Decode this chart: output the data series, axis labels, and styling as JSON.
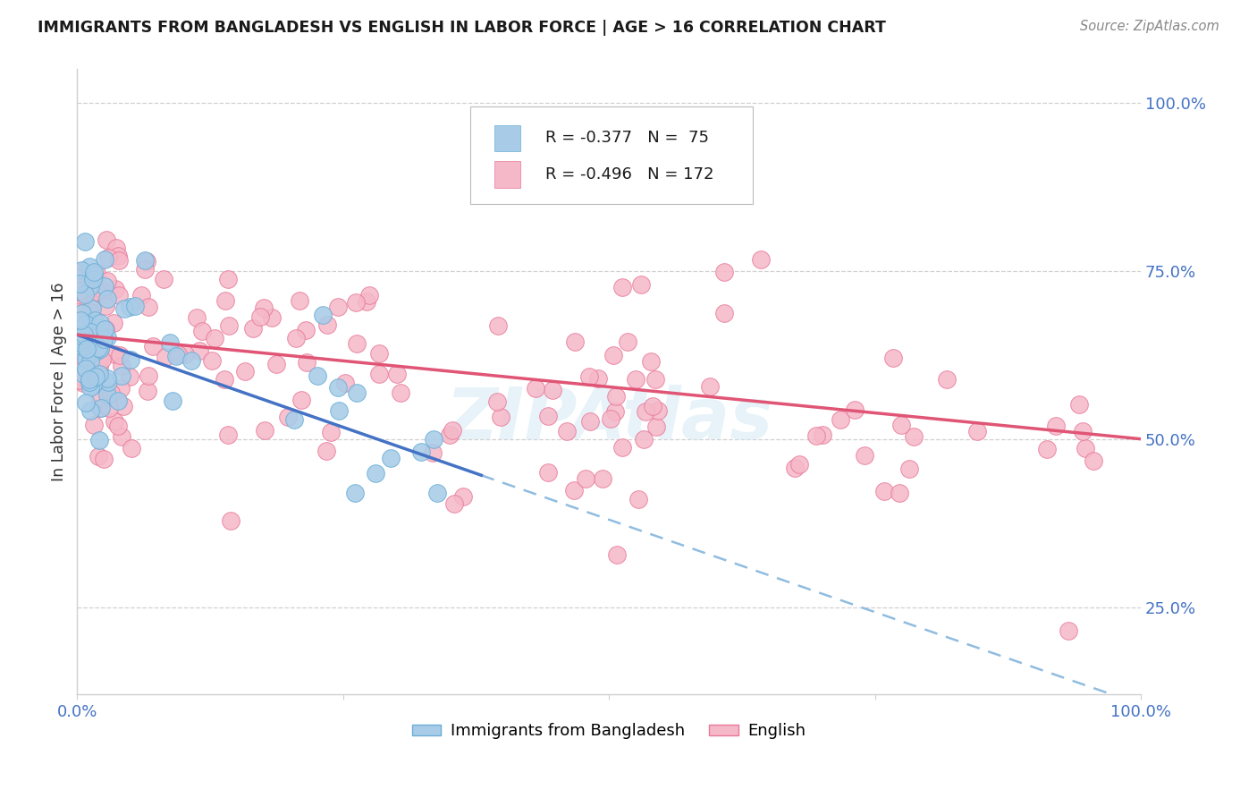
{
  "title": "IMMIGRANTS FROM BANGLADESH VS ENGLISH IN LABOR FORCE | AGE > 16 CORRELATION CHART",
  "source": "Source: ZipAtlas.com",
  "ylabel": "In Labor Force | Age > 16",
  "legend_blue_r": "-0.377",
  "legend_blue_n": "75",
  "legend_pink_r": "-0.496",
  "legend_pink_n": "172",
  "blue_color": "#a8cce8",
  "pink_color": "#f5b8c8",
  "blue_edge": "#6aadd5",
  "pink_edge": "#e87898",
  "trendline_blue_solid": "#4472c4",
  "trendline_blue_dashed": "#90bce0",
  "trendline_pink": "#e05575",
  "watermark_color": "#d0e8f5",
  "grid_color": "#d0d0d0",
  "tick_color": "#4472c4",
  "blue_intercept": 0.655,
  "blue_slope": -0.55,
  "blue_solid_xend": 0.38,
  "pink_intercept": 0.655,
  "pink_slope": -0.155,
  "dashed_extends_to": 1.0,
  "xlim": [
    0.0,
    1.0
  ],
  "ylim": [
    0.12,
    1.05
  ],
  "yticks": [
    0.25,
    0.5,
    0.75,
    1.0
  ],
  "ytick_labels": [
    "25.0%",
    "50.0%",
    "75.0%",
    "100.0%"
  ]
}
